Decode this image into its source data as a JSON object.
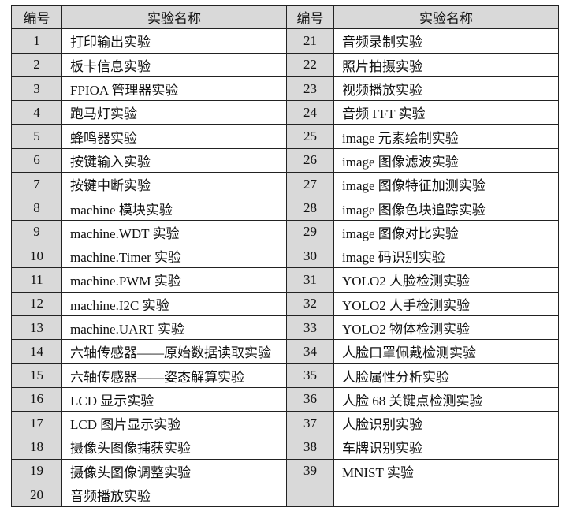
{
  "header": {
    "col_number": "编号",
    "col_name": "实验名称"
  },
  "colors": {
    "header_bg": "#d9d9d9",
    "number_bg": "#d9d9d9",
    "border": "#222222"
  },
  "experiments": [
    {
      "no": "1",
      "name": "打印输出实验"
    },
    {
      "no": "2",
      "name": "板卡信息实验"
    },
    {
      "no": "3",
      "name": "FPIOA 管理器实验"
    },
    {
      "no": "4",
      "name": "跑马灯实验"
    },
    {
      "no": "5",
      "name": "蜂鸣器实验"
    },
    {
      "no": "6",
      "name": "按键输入实验"
    },
    {
      "no": "7",
      "name": "按键中断实验"
    },
    {
      "no": "8",
      "name": "machine 模块实验"
    },
    {
      "no": "9",
      "name": "machine.WDT 实验"
    },
    {
      "no": "10",
      "name": "machine.Timer 实验"
    },
    {
      "no": "11",
      "name": "machine.PWM 实验"
    },
    {
      "no": "12",
      "name": "machine.I2C 实验"
    },
    {
      "no": "13",
      "name": "machine.UART 实验"
    },
    {
      "no": "14",
      "name": "六轴传感器——原始数据读取实验"
    },
    {
      "no": "15",
      "name": "六轴传感器——姿态解算实验"
    },
    {
      "no": "16",
      "name": "LCD 显示实验"
    },
    {
      "no": "17",
      "name": "LCD 图片显示实验"
    },
    {
      "no": "18",
      "name": "摄像头图像捕获实验"
    },
    {
      "no": "19",
      "name": "摄像头图像调整实验"
    },
    {
      "no": "20",
      "name": "音频播放实验"
    },
    {
      "no": "21",
      "name": "音频录制实验"
    },
    {
      "no": "22",
      "name": "照片拍摄实验"
    },
    {
      "no": "23",
      "name": "视频播放实验"
    },
    {
      "no": "24",
      "name": "音频 FFT 实验"
    },
    {
      "no": "25",
      "name": "image 元素绘制实验"
    },
    {
      "no": "26",
      "name": "image 图像滤波实验"
    },
    {
      "no": "27",
      "name": "image 图像特征加测实验"
    },
    {
      "no": "28",
      "name": "image 图像色块追踪实验"
    },
    {
      "no": "29",
      "name": "image 图像对比实验"
    },
    {
      "no": "30",
      "name": "image 码识别实验"
    },
    {
      "no": "31",
      "name": "YOLO2 人脸检测实验"
    },
    {
      "no": "32",
      "name": "YOLO2 人手检测实验"
    },
    {
      "no": "33",
      "name": "YOLO2 物体检测实验"
    },
    {
      "no": "34",
      "name": "人脸口罩佩戴检测实验"
    },
    {
      "no": "35",
      "name": "人脸属性分析实验"
    },
    {
      "no": "36",
      "name": "人脸 68 关键点检测实验"
    },
    {
      "no": "37",
      "name": "人脸识别实验"
    },
    {
      "no": "38",
      "name": "车牌识别实验"
    },
    {
      "no": "39",
      "name": "MNIST 实验"
    }
  ]
}
